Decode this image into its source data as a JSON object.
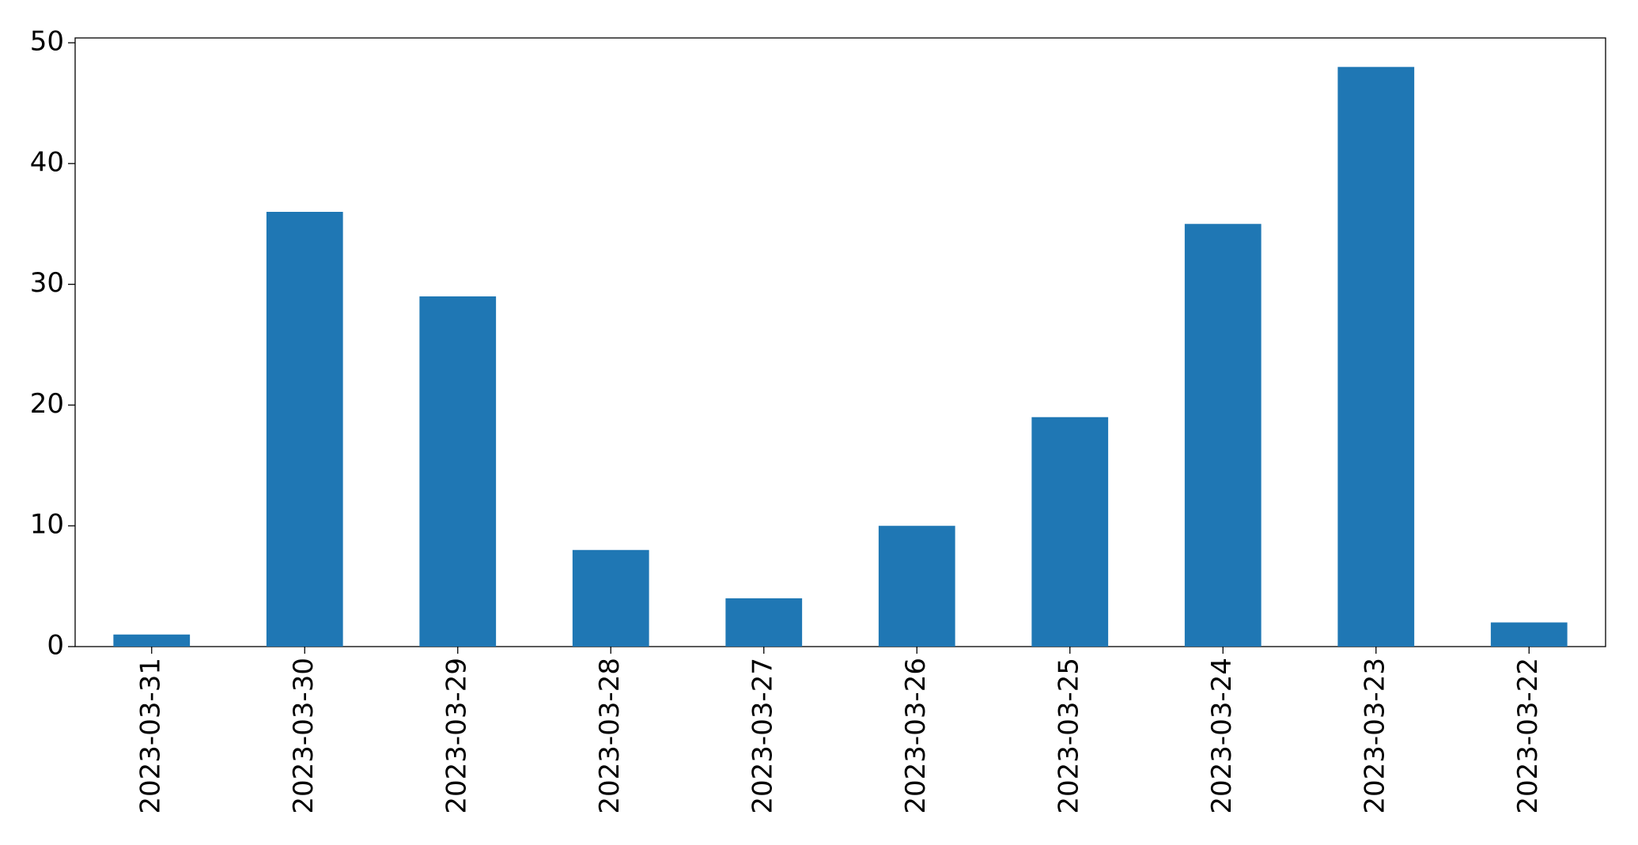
{
  "chart_data": {
    "type": "bar",
    "categories": [
      "2023-03-31",
      "2023-03-30",
      "2023-03-29",
      "2023-03-28",
      "2023-03-27",
      "2023-03-26",
      "2023-03-25",
      "2023-03-24",
      "2023-03-23",
      "2023-03-22"
    ],
    "values": [
      1,
      36,
      29,
      8,
      4,
      10,
      19,
      35,
      48,
      2
    ],
    "color": "#1f77b4",
    "ylim": [
      0,
      50.4
    ],
    "yticks": [
      0,
      10,
      20,
      30,
      40,
      50
    ],
    "grid": false
  }
}
